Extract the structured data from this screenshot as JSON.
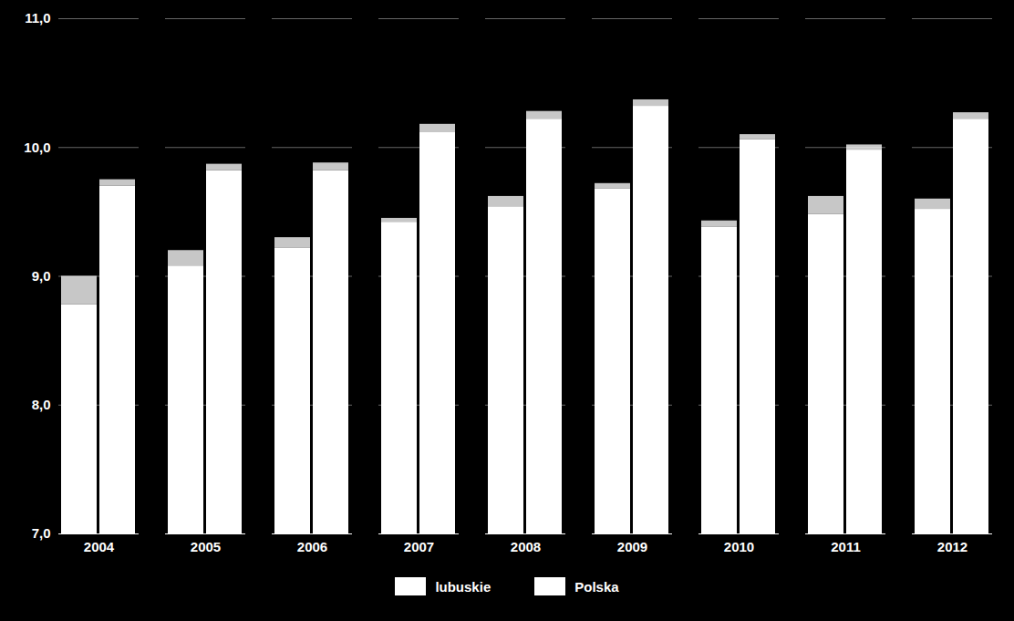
{
  "chart_data": {
    "type": "bar",
    "categories": [
      "2004",
      "2005",
      "2006",
      "2007",
      "2008",
      "2009",
      "2010",
      "2011",
      "2012"
    ],
    "series": [
      {
        "name": "lubuskie",
        "color": "#ffffff",
        "values": [
          8.78,
          9.08,
          9.22,
          9.42,
          9.54,
          9.68,
          9.38,
          9.48,
          9.52
        ],
        "cap": [
          9.0,
          9.2,
          9.3,
          9.45,
          9.62,
          9.72,
          9.43,
          9.62,
          9.6
        ]
      },
      {
        "name": "Polska",
        "color": "#ffffff",
        "values": [
          9.7,
          9.82,
          9.82,
          10.12,
          10.22,
          10.32,
          10.06,
          9.98,
          10.22
        ],
        "cap": [
          9.75,
          9.87,
          9.88,
          10.18,
          10.28,
          10.37,
          10.1,
          10.02,
          10.27
        ]
      }
    ],
    "ylim": [
      7.0,
      11.0
    ],
    "yticks": [
      {
        "value": 7.0,
        "label": "7,0"
      },
      {
        "value": 8.0,
        "label": "8,0"
      },
      {
        "value": 9.0,
        "label": "9,0"
      },
      {
        "value": 10.0,
        "label": "10,0"
      },
      {
        "value": 11.0,
        "label": "11,0"
      }
    ],
    "grid": true,
    "legend": "bottom"
  }
}
